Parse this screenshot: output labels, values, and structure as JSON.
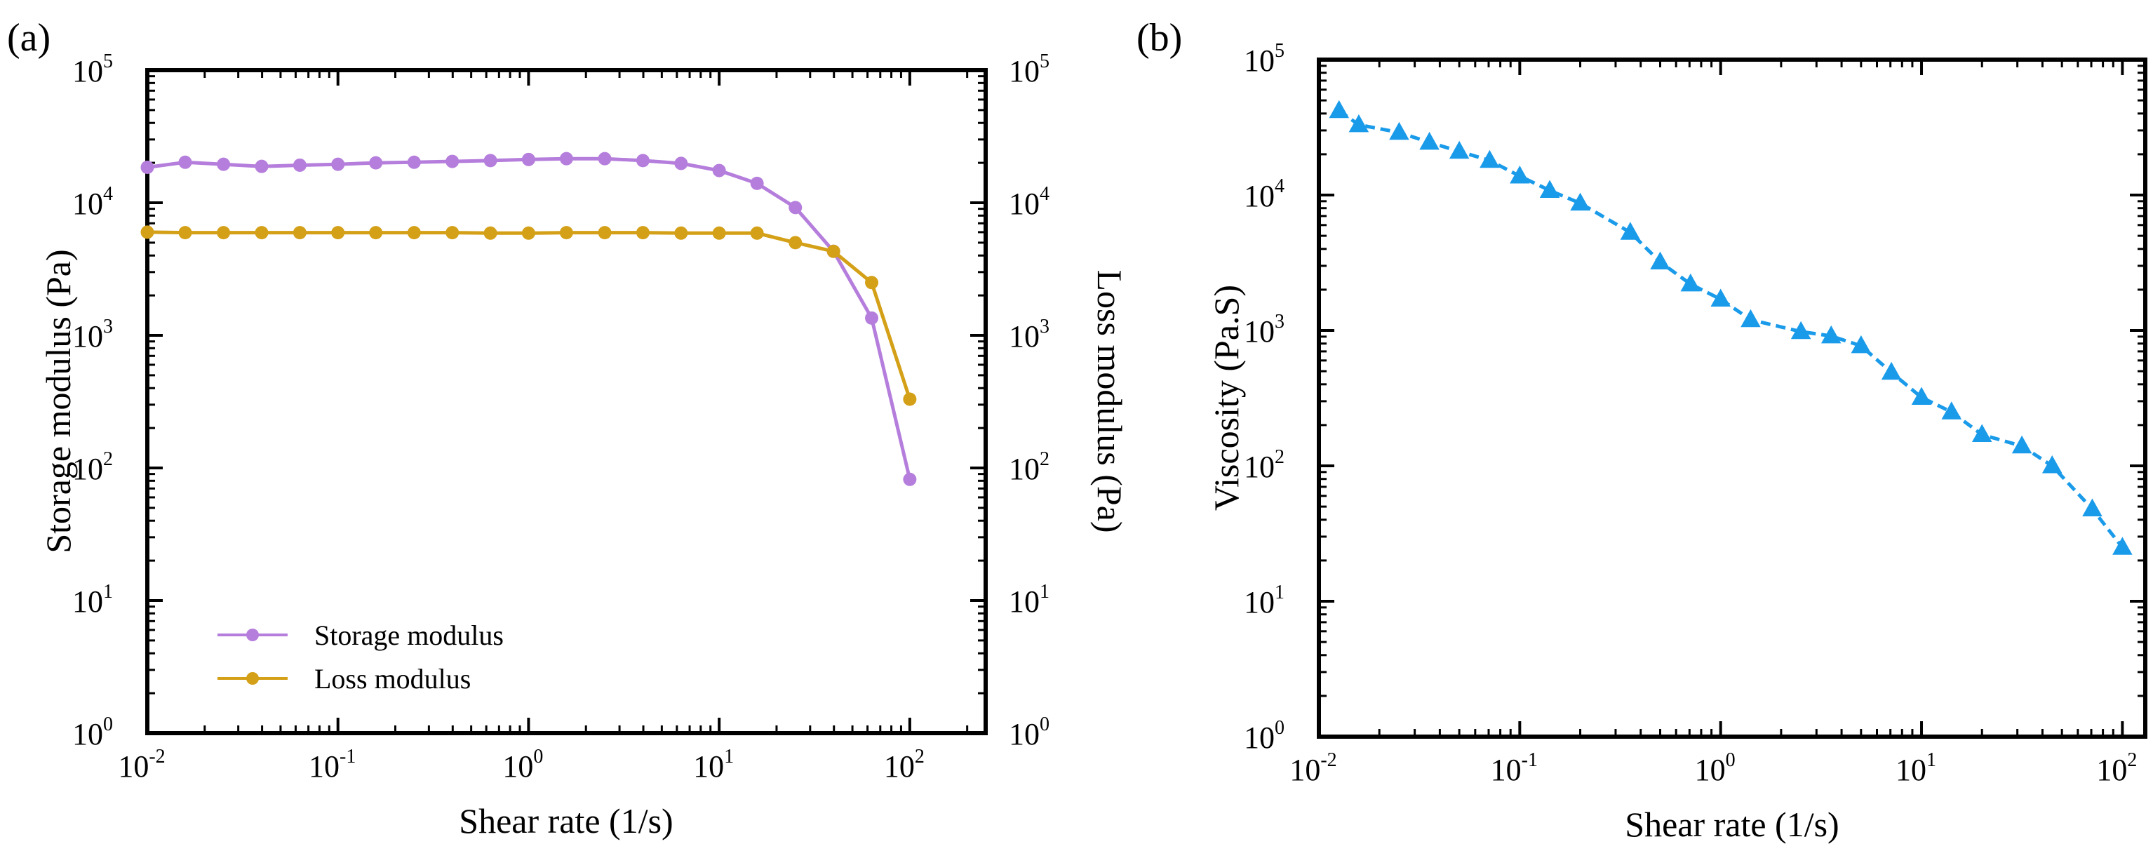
{
  "chart_data": [
    {
      "panel": "(a)",
      "type": "line",
      "xlabel": "Shear rate (1/s)",
      "ylabel": "Storage modulus (Pa)",
      "y2label": "Loss modulus (Pa)",
      "xscale": "log",
      "yscale": "log",
      "xlim": [
        0.01,
        250
      ],
      "ylim": [
        1,
        100000
      ],
      "y2lim": [
        1,
        100000
      ],
      "xticks": [
        0.01,
        0.1,
        1,
        10,
        100
      ],
      "yticks": [
        1,
        10,
        100,
        1000,
        10000,
        100000
      ],
      "legend": {
        "position": "bottom-left"
      },
      "series": [
        {
          "name": "Storage modulus",
          "color": "#B57EDC",
          "marker": "circle",
          "axis": "left",
          "x": [
            0.01,
            0.0158,
            0.0251,
            0.0398,
            0.0631,
            0.1,
            0.158,
            0.251,
            0.398,
            0.631,
            1,
            1.58,
            2.51,
            3.98,
            6.31,
            10,
            15.8,
            25.1,
            39.8,
            63.1,
            100
          ],
          "y": [
            18500,
            20200,
            19500,
            18800,
            19200,
            19500,
            20000,
            20200,
            20500,
            20800,
            21200,
            21500,
            21500,
            20800,
            19800,
            17500,
            14000,
            9200,
            4300,
            1350,
            82
          ]
        },
        {
          "name": "Loss modulus",
          "color": "#D4A017",
          "marker": "circle",
          "axis": "right",
          "x": [
            0.01,
            0.0158,
            0.0251,
            0.0398,
            0.0631,
            0.1,
            0.158,
            0.251,
            0.398,
            0.631,
            1,
            1.58,
            2.51,
            3.98,
            6.31,
            10,
            15.8,
            25.1,
            39.8,
            63.1,
            100
          ],
          "y": [
            6000,
            5950,
            5950,
            5950,
            5950,
            5950,
            5950,
            5950,
            5950,
            5900,
            5900,
            5950,
            5950,
            5950,
            5900,
            5900,
            5900,
            5000,
            4300,
            2500,
            330
          ]
        }
      ]
    },
    {
      "panel": "(b)",
      "type": "line",
      "xlabel": "Shear rate (1/s)",
      "ylabel": "Viscosity (Pa.S)",
      "xscale": "log",
      "yscale": "log",
      "xlim": [
        0.01,
        130
      ],
      "ylim": [
        1,
        100000
      ],
      "xticks": [
        0.01,
        0.1,
        1,
        10,
        100
      ],
      "yticks": [
        1,
        10,
        100,
        1000,
        10000,
        100000
      ],
      "series": [
        {
          "color": "#1A9BEA",
          "marker": "triangle",
          "style": "dashed",
          "x": [
            0.0126,
            0.0158,
            0.0251,
            0.0355,
            0.05,
            0.0708,
            0.1,
            0.141,
            0.2,
            0.355,
            0.5,
            0.708,
            1,
            1.41,
            2.51,
            3.55,
            5,
            7.08,
            10,
            14.1,
            20,
            31.6,
            44.7,
            70.8,
            100
          ],
          "y": [
            42000,
            33000,
            29000,
            24500,
            21000,
            18000,
            13800,
            10800,
            8700,
            5300,
            3200,
            2200,
            1700,
            1200,
            980,
            910,
            770,
            490,
            320,
            250,
            170,
            140,
            100,
            48,
            25
          ]
        }
      ]
    }
  ]
}
